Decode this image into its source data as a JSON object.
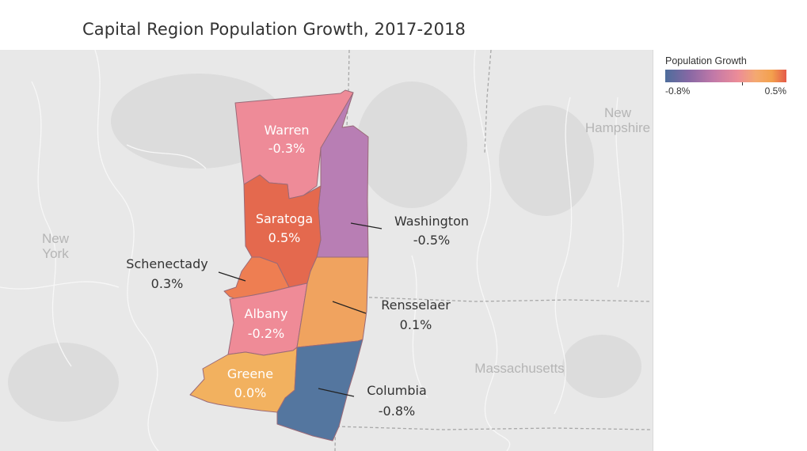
{
  "title": "Capital Region Population Growth, 2017-2018",
  "legend": {
    "title": "Population Growth",
    "min_label": "-0.8%",
    "max_label": "0.5%"
  },
  "background_labels": {
    "new_york": [
      "New",
      "York"
    ],
    "new_hampshire": [
      "New",
      "Hampshire"
    ],
    "massachusetts": "Massachusetts"
  },
  "counties": [
    {
      "name": "Warren",
      "growth": "-0.3%",
      "growth_value": -0.3,
      "color": "#ee8b98"
    },
    {
      "name": "Saratoga",
      "growth": "0.5%",
      "growth_value": 0.5,
      "color": "#e4694e"
    },
    {
      "name": "Washington",
      "growth": "-0.5%",
      "growth_value": -0.5,
      "color": "#b87eb4"
    },
    {
      "name": "Schenectady",
      "growth": "0.3%",
      "growth_value": 0.3,
      "color": "#ee7e52"
    },
    {
      "name": "Albany",
      "growth": "-0.2%",
      "growth_value": -0.2,
      "color": "#ef8b97"
    },
    {
      "name": "Rensselaer",
      "growth": "0.1%",
      "growth_value": 0.1,
      "color": "#f0a35f"
    },
    {
      "name": "Greene",
      "growth": "0.0%",
      "growth_value": 0.0,
      "color": "#f2b15f"
    },
    {
      "name": "Columbia",
      "growth": "-0.8%",
      "growth_value": -0.8,
      "color": "#54769f"
    }
  ]
}
